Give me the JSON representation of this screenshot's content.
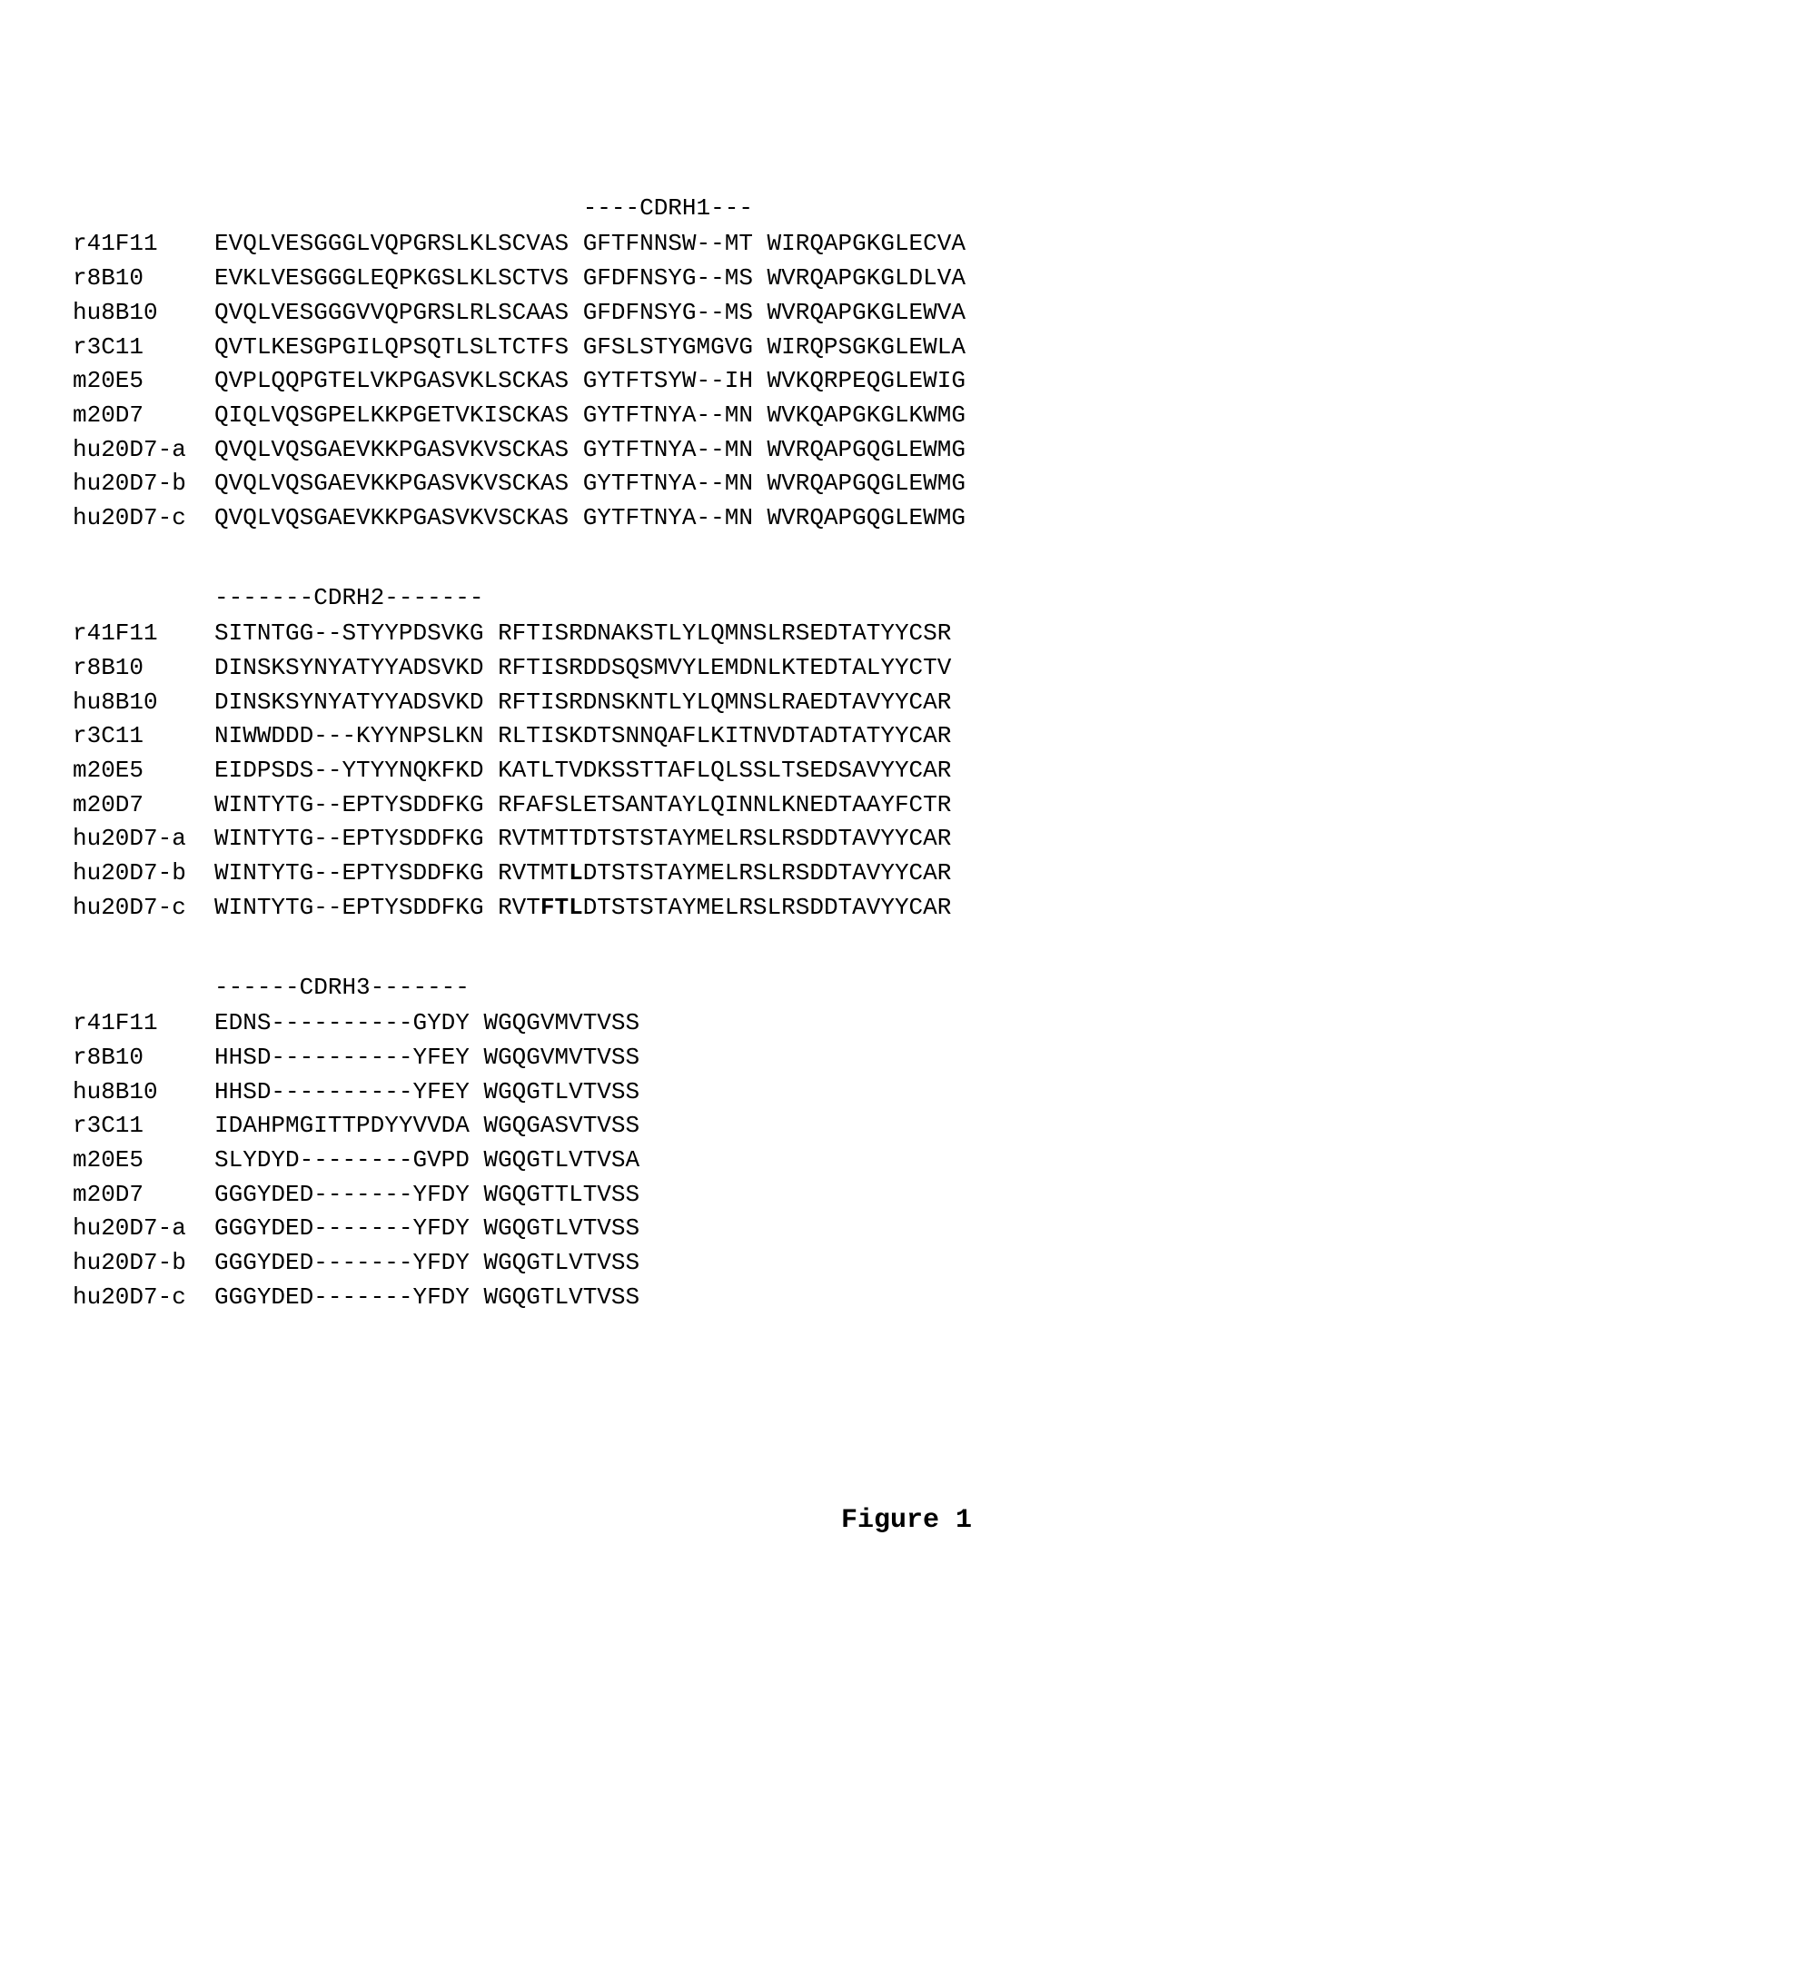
{
  "figure_title": "Figure 1",
  "colors": {
    "text": "#000000",
    "background": "#ffffff"
  },
  "fonts": {
    "family": "Courier New, Courier, monospace",
    "size_pt": 26,
    "title_size_pt": 30
  },
  "sequences": [
    {
      "id": "r41F11",
      "fr1": "EVQLVESGGGLVQPGRSLKLSCVAS",
      "cdrh1": "GFTFNNSW--MT",
      "fr2": "WIRQAPGKGLECVA",
      "cdrh2": "SITNTGG--STYYPDSVKG",
      "fr3": "RFTISRDNAKSTLYLQMNSLRSEDTATYYCSR",
      "cdrh3": "EDNS----------GYDY",
      "fr4": "WGQGVMVTVSS"
    },
    {
      "id": "r8B10",
      "fr1": "EVKLVESGGGLEQPKGSLKLSCTVS",
      "cdrh1": "GFDFNSYG--MS",
      "fr2": "WVRQAPGKGLDLVA",
      "cdrh2": "DINSKSYNYATYYADSVKD",
      "fr3": "RFTISRDDSQSMVYLEMDNLKTEDTALYYCTV",
      "cdrh3": "HHSD----------YFEY",
      "fr4": "WGQGVMVTVSS"
    },
    {
      "id": "hu8B10",
      "fr1": "QVQLVESGGGVVQPGRSLRLSCAAS",
      "cdrh1": "GFDFNSYG--MS",
      "fr2": "WVRQAPGKGLEWVA",
      "cdrh2": "DINSKSYNYATYYADSVKD",
      "fr3": "RFTISRDNSKNTLYLQMNSLRAEDTAVYYCAR",
      "cdrh3": "HHSD----------YFEY",
      "fr4": "WGQGTLVTVSS"
    },
    {
      "id": "r3C11",
      "fr1": "QVTLKESGPGILQPSQTLSLTCTFS",
      "cdrh1": "GFSLSTYGMGVG",
      "fr2": "WIRQPSGKGLEWLA",
      "cdrh2": "NIWWDDD---KYYNPSLKN",
      "fr3": "RLTISKDTSNNQAFLKITNVDTADTATYYCAR",
      "cdrh3": "IDAHPMGITTPDYYVVDA",
      "fr4": "WGQGASVTVSS"
    },
    {
      "id": "m20E5",
      "fr1": "QVPLQQPGTELVKPGASVKLSCKAS",
      "cdrh1": "GYTFTSYW--IH",
      "fr2": "WVKQRPEQGLEWIG",
      "cdrh2": "EIDPSDS--YTYYNQKFKD",
      "fr3": "KATLTVDKSSTTAFLQLSSLTSEDSAVYYCAR",
      "cdrh3": "SLYDYD--------GVPD",
      "fr4": "WGQGTLVTVSA"
    },
    {
      "id": "m20D7",
      "fr1": "QIQLVQSGPELKKPGETVKISCKAS",
      "cdrh1": "GYTFTNYA--MN",
      "fr2": "WVKQAPGKGLKWMG",
      "cdrh2": "WINTYTG--EPTYSDDFKG",
      "fr3": "RFAFSLETSANTAYLQINNLKNEDTAAYFCTR",
      "cdrh3": "GGGYDED-------YFDY",
      "fr4": "WGQGTTLTVSS"
    },
    {
      "id": "hu20D7-a",
      "fr1": "QVQLVQSGAEVKKPGASVKVSCKAS",
      "cdrh1": "GYTFTNYA--MN",
      "fr2": "WVRQAPGQGLEWMG",
      "cdrh2": "WINTYTG--EPTYSDDFKG",
      "fr3": "RVTMTTDTSTSTAYMELRSLRSDDTAVYYCAR",
      "cdrh3": "GGGYDED-------YFDY",
      "fr4": "WGQGTLVTVSS"
    },
    {
      "id": "hu20D7-b",
      "fr1": "QVQLVQSGAEVKKPGASVKVSCKAS",
      "cdrh1": "GYTFTNYA--MN",
      "fr2": "WVRQAPGQGLEWMG",
      "cdrh2": "WINTYTG--EPTYSDDFKG",
      "fr3": "RVTMT",
      "fr3_bold": "L",
      "fr3_tail": "DTSTSTAYMELRSLRSDDTAVYYCAR",
      "cdrh3": "GGGYDED-------YFDY",
      "fr4": "WGQGTLVTVSS"
    },
    {
      "id": "hu20D7-c",
      "fr1": "QVQLVQSGAEVKKPGASVKVSCKAS",
      "cdrh1": "GYTFTNYA--MN",
      "fr2": "WVRQAPGQGLEWMG",
      "cdrh2": "WINTYTG--EPTYSDDFKG",
      "fr3": "RVT",
      "fr3_bold": "FTL",
      "fr3_tail": "DTSTSTAYMELRSLRSDDTAVYYCAR",
      "cdrh3": "GGGYDED-------YFDY",
      "fr4": "WGQGTLVTVSS"
    }
  ],
  "headers": {
    "cdrh1": "----CDRH1---",
    "cdrh2": "-------CDRH2-------",
    "cdrh3": "------CDRH3-------"
  },
  "layout": {
    "label_width_ch": 9,
    "block1_header_indent_ch": 36,
    "block2_header_indent_ch": 10,
    "block3_header_indent_ch": 10
  }
}
